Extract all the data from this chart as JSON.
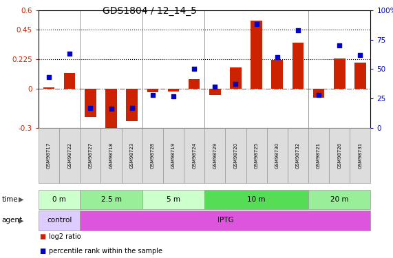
{
  "title": "GDS1804 / 12_14_5",
  "samples": [
    "GSM98717",
    "GSM98722",
    "GSM98727",
    "GSM98718",
    "GSM98723",
    "GSM98728",
    "GSM98719",
    "GSM98724",
    "GSM98729",
    "GSM98720",
    "GSM98725",
    "GSM98730",
    "GSM98732",
    "GSM98721",
    "GSM98726",
    "GSM98731"
  ],
  "log2_ratio": [
    0.01,
    0.12,
    -0.22,
    -0.31,
    -0.25,
    -0.03,
    -0.02,
    0.07,
    -0.05,
    0.16,
    0.52,
    0.22,
    0.35,
    -0.07,
    0.23,
    0.2
  ],
  "percentile_rank": [
    43,
    63,
    17,
    16,
    17,
    28,
    27,
    50,
    35,
    37,
    88,
    60,
    83,
    28,
    70,
    62
  ],
  "ylim_left": [
    -0.3,
    0.6
  ],
  "ylim_right": [
    0,
    100
  ],
  "yticks_left": [
    -0.3,
    0.0,
    0.225,
    0.45,
    0.6
  ],
  "yticks_right": [
    0,
    25,
    50,
    75,
    100
  ],
  "hlines": [
    0.225,
    0.45
  ],
  "bar_color": "#cc2200",
  "dot_color": "#0000cc",
  "bar_width": 0.55,
  "dot_size": 22,
  "time_groups": [
    {
      "label": "0 m",
      "start": 0,
      "end": 2,
      "color": "#ccffcc"
    },
    {
      "label": "2.5 m",
      "start": 2,
      "end": 5,
      "color": "#99ee99"
    },
    {
      "label": "5 m",
      "start": 5,
      "end": 8,
      "color": "#ccffcc"
    },
    {
      "label": "10 m",
      "start": 8,
      "end": 13,
      "color": "#55dd55"
    },
    {
      "label": "20 m",
      "start": 13,
      "end": 16,
      "color": "#99ee99"
    }
  ],
  "agent_groups": [
    {
      "label": "control",
      "start": 0,
      "end": 2,
      "color": "#ddccff"
    },
    {
      "label": "IPTG",
      "start": 2,
      "end": 16,
      "color": "#dd55dd"
    }
  ],
  "group_boundaries": [
    2,
    5,
    8,
    13
  ],
  "legend_bar": "log2 ratio",
  "legend_dot": "percentile rank within the sample",
  "bar_color_legend": "#cc2200",
  "dot_color_legend": "#0000cc",
  "bg_color": "#ffffff",
  "tick_color_left": "#cc2200",
  "tick_color_right": "#0000cc",
  "label_cell_color": "#dddddd",
  "spine_color": "#999999"
}
